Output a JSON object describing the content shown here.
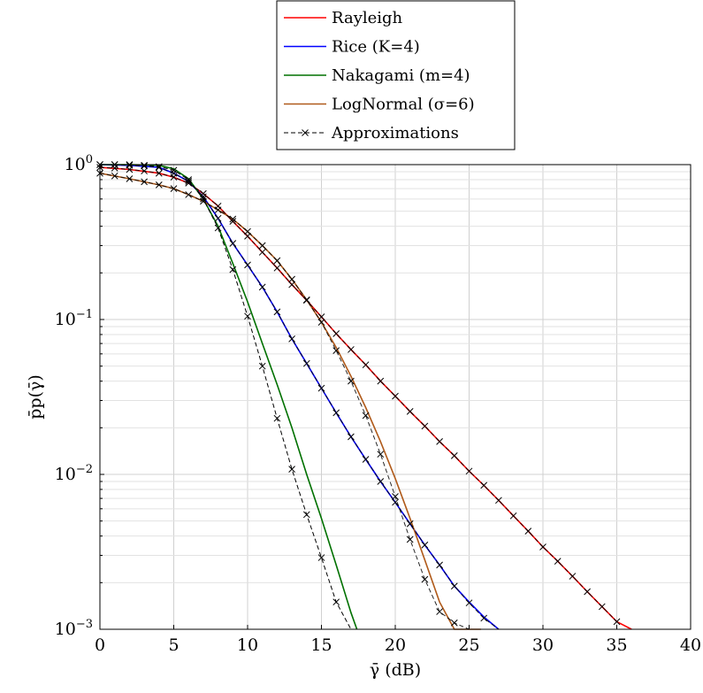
{
  "chart_data": {
    "type": "line",
    "xlabel": "γ̄ (dB)",
    "ylabel": "p̄p(γ̄)",
    "xlim": [
      0,
      40
    ],
    "ylim": [
      0.001,
      1
    ],
    "yscale": "log",
    "grid": true,
    "legend_position": "top-center",
    "x_ticks": [
      "0",
      "5",
      "10",
      "15",
      "20",
      "25",
      "30",
      "35",
      "40"
    ],
    "y_ticks": [
      {
        "base": "10",
        "exp": "0"
      },
      {
        "base": "10",
        "exp": "−1"
      },
      {
        "base": "10",
        "exp": "−2"
      },
      {
        "base": "10",
        "exp": "−3"
      }
    ],
    "series": [
      {
        "name": "Rayleigh",
        "color": "#ff0000",
        "style": "solid",
        "x": [
          0,
          2,
          4,
          5,
          6,
          7,
          8,
          9,
          10,
          11,
          12,
          13,
          14,
          15,
          16,
          17,
          18,
          19,
          20,
          21,
          22,
          23,
          24,
          25,
          26,
          27,
          28,
          29,
          30,
          31,
          32,
          33,
          34,
          35,
          36
        ],
        "y": [
          0.96,
          0.93,
          0.88,
          0.83,
          0.76,
          0.65,
          0.54,
          0.43,
          0.345,
          0.272,
          0.215,
          0.168,
          0.133,
          0.104,
          0.081,
          0.064,
          0.051,
          0.04,
          0.032,
          0.0255,
          0.0205,
          0.0163,
          0.0132,
          0.0105,
          0.0085,
          0.0068,
          0.0054,
          0.0043,
          0.0034,
          0.00275,
          0.0022,
          0.00175,
          0.0014,
          0.00112,
          0.00098
        ]
      },
      {
        "name": "Rice (K=4)",
        "color": "#0000ff",
        "style": "solid",
        "x": [
          0,
          2,
          4,
          5,
          6,
          7,
          8,
          9,
          10,
          11,
          12,
          13,
          14,
          15,
          16,
          17,
          18,
          19,
          20,
          21,
          22,
          23,
          24,
          25,
          26,
          27
        ],
        "y": [
          1,
          0.99,
          0.96,
          0.88,
          0.78,
          0.62,
          0.45,
          0.31,
          0.225,
          0.162,
          0.112,
          0.075,
          0.052,
          0.036,
          0.025,
          0.0175,
          0.0125,
          0.009,
          0.0066,
          0.0048,
          0.0035,
          0.0026,
          0.0019,
          0.0015,
          0.0012,
          0.00098
        ]
      },
      {
        "name": "Nakagami (m=4)",
        "color": "#007000",
        "style": "solid",
        "x": [
          0,
          2,
          4,
          5,
          6,
          7,
          8,
          9,
          10,
          11,
          12,
          13,
          14,
          15,
          16,
          17,
          17.4
        ],
        "y": [
          1,
          1,
          0.99,
          0.94,
          0.81,
          0.6,
          0.4,
          0.23,
          0.13,
          0.07,
          0.038,
          0.02,
          0.01,
          0.0052,
          0.0026,
          0.00128,
          0.00098
        ]
      },
      {
        "name": "LogNormal (σ=6)",
        "color": "#b05a1a",
        "style": "solid",
        "x": [
          0,
          2,
          4,
          5,
          6,
          7,
          8,
          9,
          10,
          11,
          12,
          13,
          14,
          15,
          16,
          17,
          18,
          19,
          20,
          21,
          22,
          23,
          24,
          25,
          25.8
        ],
        "y": [
          0.88,
          0.81,
          0.74,
          0.7,
          0.64,
          0.58,
          0.51,
          0.445,
          0.37,
          0.3,
          0.24,
          0.182,
          0.134,
          0.096,
          0.066,
          0.043,
          0.027,
          0.0163,
          0.0094,
          0.0052,
          0.0028,
          0.0015,
          0.0008,
          0.0004,
          0.00098
        ]
      },
      {
        "name": "Approximations",
        "color": "#000000",
        "style": "dashed",
        "marker": "x",
        "x": [
          0,
          1,
          2,
          3,
          4,
          5,
          6,
          7,
          8,
          9,
          10,
          11,
          12,
          13,
          14,
          15,
          16,
          17
        ],
        "y": [
          1,
          1,
          1,
          0.99,
          0.97,
          0.92,
          0.8,
          0.6,
          0.39,
          0.21,
          0.105,
          0.05,
          0.023,
          0.0108,
          0.0055,
          0.0029,
          0.0015,
          0.00098
        ]
      }
    ],
    "approximations": [
      {
        "for": "Rayleigh",
        "x": [
          0,
          1,
          2,
          3,
          4,
          5,
          6,
          7,
          8,
          9,
          10,
          11,
          12,
          13,
          14,
          15,
          16,
          17,
          18,
          19,
          20,
          21,
          22,
          23,
          24,
          25,
          26,
          27,
          28,
          29,
          30,
          31,
          32,
          33,
          34,
          35
        ],
        "y": [
          0.96,
          0.95,
          0.93,
          0.91,
          0.88,
          0.83,
          0.76,
          0.65,
          0.54,
          0.43,
          0.345,
          0.272,
          0.215,
          0.168,
          0.133,
          0.104,
          0.081,
          0.064,
          0.051,
          0.04,
          0.032,
          0.0255,
          0.0205,
          0.0163,
          0.0132,
          0.0105,
          0.0085,
          0.0068,
          0.0054,
          0.0043,
          0.0034,
          0.00275,
          0.0022,
          0.00175,
          0.0014,
          0.00112
        ]
      },
      {
        "for": "Rice (K=4)",
        "x": [
          0,
          1,
          2,
          3,
          4,
          5,
          6,
          7,
          8,
          9,
          10,
          11,
          12,
          13,
          14,
          15,
          16,
          17,
          18,
          19,
          20,
          21,
          22,
          23,
          24,
          25,
          26,
          27
        ],
        "y": [
          1,
          1,
          0.99,
          0.98,
          0.96,
          0.88,
          0.78,
          0.62,
          0.45,
          0.31,
          0.225,
          0.162,
          0.112,
          0.075,
          0.052,
          0.036,
          0.025,
          0.0175,
          0.0125,
          0.009,
          0.0066,
          0.0048,
          0.0035,
          0.0026,
          0.0019,
          0.00148,
          0.00118,
          0.00098
        ]
      },
      {
        "for": "LogNormal (σ=6)",
        "x": [
          0,
          1,
          2,
          3,
          4,
          5,
          6,
          7,
          8,
          9,
          10,
          11,
          12,
          13,
          14,
          15,
          16,
          17,
          18,
          19,
          20,
          21,
          22,
          23,
          24,
          25
        ],
        "y": [
          0.88,
          0.845,
          0.81,
          0.775,
          0.74,
          0.7,
          0.64,
          0.58,
          0.51,
          0.445,
          0.37,
          0.3,
          0.24,
          0.182,
          0.134,
          0.096,
          0.063,
          0.04,
          0.024,
          0.0135,
          0.0072,
          0.0038,
          0.0021,
          0.0013,
          0.0011,
          0.00098
        ]
      }
    ]
  }
}
